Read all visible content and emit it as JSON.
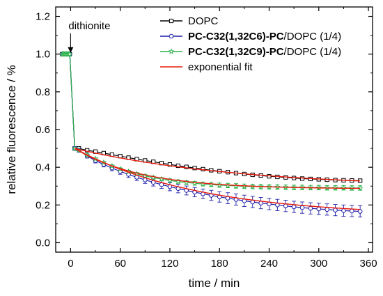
{
  "chart_data": {
    "type": "scatter",
    "xlabel": "time / min",
    "ylabel": "relative fluorescence / %",
    "xlim": [
      -18,
      365
    ],
    "ylim": [
      -0.05,
      1.25
    ],
    "xticks": [
      0,
      60,
      120,
      180,
      240,
      300,
      360
    ],
    "xtick_labels": [
      "0",
      "60",
      "120",
      "180",
      "240",
      "300",
      "360"
    ],
    "yticks": [
      0.0,
      0.2,
      0.4,
      0.6,
      0.8,
      1.0,
      1.2
    ],
    "ytick_labels": [
      "0.0",
      "0.2",
      "0.4",
      "0.6",
      "0.8",
      "1.0",
      "1.2"
    ],
    "grid": false,
    "legend_position": "top-right",
    "annotation": {
      "text": "dithionite",
      "x": 0,
      "y": 1.0
    },
    "legend": [
      {
        "series": "dopc",
        "label_bold": "",
        "label_rest": "DOPC"
      },
      {
        "series": "c6",
        "label_bold": "PC-C32(1,32C6)-PC",
        "label_rest": "/DOPC (1/4)"
      },
      {
        "series": "c9",
        "label_bold": "PC-C32(1,32C9)-PC",
        "label_rest": "/DOPC (1/4)"
      },
      {
        "series": "fit",
        "label_bold": "",
        "label_rest": "exponential fit"
      }
    ],
    "series": [
      {
        "id": "dopc",
        "marker": "square",
        "color": "#000000",
        "pre_x": [
          -10,
          -9,
          -8,
          -7,
          -6,
          -5,
          -4,
          -3,
          -2,
          -1
        ],
        "pre_y": [
          1.0,
          1.0,
          1.0,
          1.0,
          1.0,
          1.0,
          1.0,
          1.0,
          1.0,
          1.0
        ],
        "x": [
          5,
          10,
          20,
          30,
          40,
          50,
          60,
          70,
          80,
          90,
          100,
          110,
          120,
          130,
          140,
          150,
          160,
          170,
          180,
          190,
          200,
          210,
          220,
          230,
          240,
          250,
          260,
          270,
          280,
          290,
          300,
          310,
          320,
          330,
          340,
          350
        ],
        "y": [
          0.5,
          0.5,
          0.49,
          0.483,
          0.475,
          0.467,
          0.459,
          0.451,
          0.443,
          0.436,
          0.429,
          0.422,
          0.415,
          0.408,
          0.402,
          0.396,
          0.39,
          0.384,
          0.379,
          0.374,
          0.369,
          0.364,
          0.36,
          0.356,
          0.352,
          0.349,
          0.346,
          0.343,
          0.34,
          0.338,
          0.336,
          0.334,
          0.332,
          0.331,
          0.33,
          0.329
        ],
        "err": 0.008
      },
      {
        "id": "c6",
        "marker": "circle",
        "color": "#1f1fa8",
        "pre_x": [
          -10,
          -9,
          -8,
          -7,
          -6,
          -5,
          -4,
          -3,
          -2,
          -1
        ],
        "pre_y": [
          1.0,
          1.0,
          1.0,
          1.0,
          1.0,
          1.0,
          1.0,
          1.0,
          1.0,
          1.0
        ],
        "x": [
          5,
          10,
          20,
          30,
          40,
          50,
          60,
          70,
          80,
          90,
          100,
          110,
          120,
          130,
          140,
          150,
          160,
          170,
          180,
          190,
          200,
          210,
          220,
          230,
          240,
          250,
          260,
          270,
          280,
          290,
          300,
          310,
          320,
          330,
          340,
          350
        ],
        "y": [
          0.5,
          0.49,
          0.46,
          0.435,
          0.415,
          0.396,
          0.378,
          0.362,
          0.347,
          0.333,
          0.32,
          0.308,
          0.297,
          0.287,
          0.277,
          0.268,
          0.259,
          0.251,
          0.243,
          0.236,
          0.229,
          0.222,
          0.216,
          0.21,
          0.205,
          0.2,
          0.195,
          0.19,
          0.186,
          0.182,
          0.179,
          0.176,
          0.173,
          0.17,
          0.168,
          0.166
        ],
        "err": 0.03
      },
      {
        "id": "c9",
        "marker": "star",
        "color": "#2ab24a",
        "pre_x": [
          -10,
          -9,
          -8,
          -7,
          -6,
          -5,
          -4,
          -3,
          -2,
          -1
        ],
        "pre_y": [
          1.0,
          1.0,
          1.0,
          1.0,
          1.0,
          1.0,
          1.0,
          1.0,
          1.0,
          1.0
        ],
        "x": [
          5,
          10,
          20,
          30,
          40,
          50,
          60,
          70,
          80,
          90,
          100,
          110,
          120,
          130,
          140,
          150,
          160,
          170,
          180,
          190,
          200,
          210,
          220,
          230,
          240,
          250,
          260,
          270,
          280,
          290,
          300,
          310,
          320,
          330,
          340,
          350
        ],
        "y": [
          0.5,
          0.49,
          0.465,
          0.445,
          0.425,
          0.407,
          0.391,
          0.377,
          0.365,
          0.354,
          0.345,
          0.337,
          0.33,
          0.324,
          0.319,
          0.315,
          0.311,
          0.308,
          0.305,
          0.303,
          0.301,
          0.299,
          0.298,
          0.297,
          0.296,
          0.295,
          0.294,
          0.293,
          0.293,
          0.292,
          0.292,
          0.291,
          0.291,
          0.291,
          0.29,
          0.29
        ],
        "err": 0.012
      }
    ],
    "fits": [
      {
        "series": "dopc",
        "y0": 0.29,
        "a": 0.21,
        "tau": 200
      },
      {
        "series": "c6",
        "y0": 0.14,
        "a": 0.36,
        "tau": 150
      },
      {
        "series": "c9",
        "y0": 0.285,
        "a": 0.215,
        "tau": 80
      }
    ],
    "fit_color": "#e8190c"
  }
}
